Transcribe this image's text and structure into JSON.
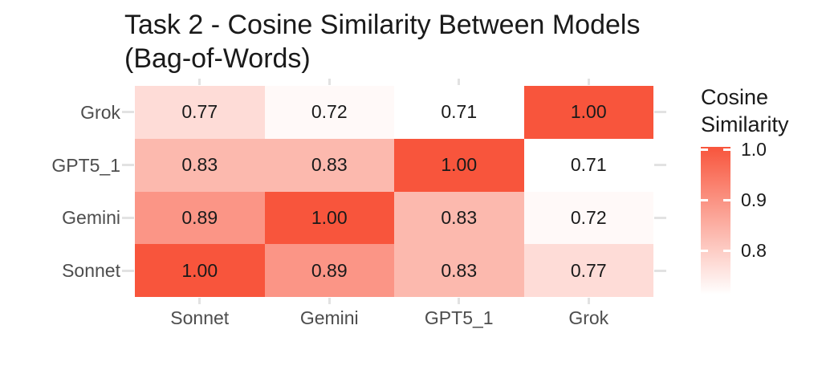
{
  "title": {
    "line1": "Task 2 - Cosine Similarity Between Models",
    "line2": "(Bag-of-Words)"
  },
  "chart_data": {
    "type": "heatmap",
    "title": "Task 2 - Cosine Similarity Between Models (Bag-of-Words)",
    "x_categories": [
      "Sonnet",
      "Gemini",
      "GPT5_1",
      "Grok"
    ],
    "y_categories_top_to_bottom": [
      "Grok",
      "GPT5_1",
      "Gemini",
      "Sonnet"
    ],
    "values_rows_top_to_bottom": [
      [
        0.77,
        0.72,
        0.71,
        1.0
      ],
      [
        0.83,
        0.83,
        1.0,
        0.71
      ],
      [
        0.89,
        1.0,
        0.83,
        0.72
      ],
      [
        1.0,
        0.89,
        0.83,
        0.77
      ]
    ],
    "value_decimals": 2,
    "color_scale": {
      "high_color": "#F8553C",
      "low_color": "#FFFFFF",
      "domain": [
        0.71,
        1.0
      ]
    },
    "legend": {
      "title_line1": "Cosine",
      "title_line2": "Similarity",
      "ticks": [
        {
          "label": "1.0",
          "value": 1.0
        },
        {
          "label": "0.9",
          "value": 0.9
        },
        {
          "label": "0.8",
          "value": 0.8
        }
      ]
    },
    "grid": false,
    "legend_position": "right"
  }
}
